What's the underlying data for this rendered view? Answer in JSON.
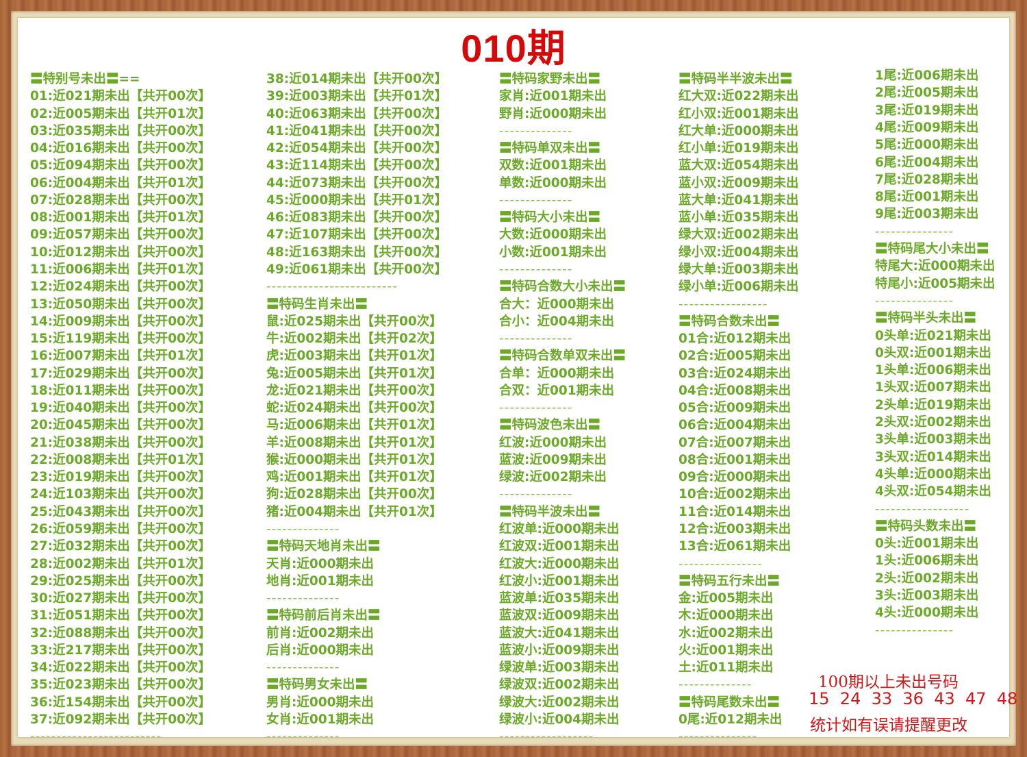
{
  "title": "010期",
  "colors": {
    "text": "#6aaa26",
    "title": "#d40a0a",
    "frame": "#a8643a"
  },
  "columns": [
    [
      "〓特别号未出〓==",
      "01:近021期未出【共开00次】",
      "02:近005期未出【共开01次】",
      "03:近035期未出【共开00次】",
      "04:近016期未出【共开00次】",
      "05:近094期未出【共开00次】",
      "06:近004期未出【共开01次】",
      "07:近028期未出【共开00次】",
      "08:近001期未出【共开01次】",
      "09:近057期未出【共开00次】",
      "10:近012期未出【共开00次】",
      "11:近006期未出【共开01次】",
      "12:近024期未出【共开00次】",
      "13:近050期未出【共开00次】",
      "14:近009期未出【共开00次】",
      "15:近119期未出【共开00次】",
      "16:近007期未出【共开01次】",
      "17:近029期未出【共开00次】",
      "18:近011期未出【共开00次】",
      "19:近040期未出【共开00次】",
      "20:近045期未出【共开00次】",
      "21:近038期未出【共开00次】",
      "22:近008期未出【共开01次】",
      "23:近019期未出【共开00次】",
      "24:近103期未出【共开00次】",
      "25:近043期未出【共开00次】",
      "26:近059期未出【共开00次】",
      "27:近032期未出【共开00次】",
      "28:近002期未出【共开01次】",
      "29:近025期未出【共开00次】",
      "30:近027期未出【共开00次】",
      "31:近051期未出【共开00次】",
      "32:近088期未出【共开00次】",
      "33:近217期未出【共开00次】",
      "34:近022期未出【共开00次】",
      "35:近023期未出【共开00次】",
      "36:近154期未出【共开00次】",
      "37:近092期未出【共开00次】",
      "-------------------------"
    ],
    [
      "38:近014期未出【共开00次】",
      "39:近003期未出【共开01次】",
      "40:近063期未出【共开00次】",
      "41:近041期未出【共开00次】",
      "42:近054期未出【共开00次】",
      "43:近114期未出【共开00次】",
      "44:近073期未出【共开00次】",
      "45:近000期未出【共开01次】",
      "46:近083期未出【共开00次】",
      "47:近107期未出【共开00次】",
      "48:近163期未出【共开00次】",
      "49:近061期未出【共开00次】",
      "-------------------------",
      "〓特码生肖未出〓",
      "鼠:近025期未出【共开00次】",
      "牛:近002期未出【共开02次】",
      "虎:近003期未出【共开01次】",
      "兔:近005期未出【共开01次】",
      "龙:近021期未出【共开00次】",
      "蛇:近024期未出【共开00次】",
      "马:近006期未出【共开01次】",
      "羊:近008期未出【共开01次】",
      "猴:近000期未出【共开01次】",
      "鸡:近001期未出【共开01次】",
      "狗:近028期未出【共开00次】",
      "猪:近004期未出【共开01次】",
      "--------------",
      "〓特码天地肖未出〓",
      "天肖:近000期未出",
      "地肖:近001期未出",
      "--------------",
      "〓特码前后肖未出〓",
      "前肖:近002期未出",
      "后肖:近000期未出",
      "--------------",
      "〓特码男女未出〓",
      "男肖:近000期未出",
      "女肖:近001期未出",
      "--------------"
    ],
    [
      "〓特码家野未出〓",
      "家肖:近001期未出",
      "野肖:近000期未出",
      "--------------",
      "〓特码单双未出〓",
      "双数:近001期未出",
      "单数:近000期未出",
      "--------------",
      "〓特码大小未出〓",
      "大数:近000期未出",
      "小数:近001期未出",
      "--------------",
      "〓特码合数大小未出〓",
      "合大：近000期未出",
      "合小：近004期未出",
      "--------------",
      "〓特码合数单双未出〓",
      "合单：近000期未出",
      "合双：近001期未出",
      "--------------",
      "〓特码波色未出〓",
      "红波:近000期未出",
      "蓝波:近009期未出",
      "绿波:近002期未出",
      "--------------",
      "〓特码半波未出〓",
      "红波单:近000期未出",
      "红波双:近001期未出",
      "红波大:近000期未出",
      "红波小:近001期未出",
      "蓝波单:近035期未出",
      "蓝波双:近009期未出",
      "蓝波大:近041期未出",
      "蓝波小:近009期未出",
      "绿波单:近003期未出",
      "绿波双:近002期未出",
      "绿波大:近002期未出",
      "绿波小:近004期未出",
      "------------------"
    ],
    [
      "〓特码半半波未出〓",
      "红大双:近022期未出",
      "红小双:近001期未出",
      "红大单:近000期未出",
      "红小单:近019期未出",
      "蓝大双:近054期未出",
      "蓝小双:近009期未出",
      "蓝大单:近041期未出",
      "蓝小单:近035期未出",
      "绿大双:近002期未出",
      "绿小双:近004期未出",
      "绿大单:近003期未出",
      "绿小单:近006期未出",
      "-----------------",
      "〓特码合数未出〓",
      "01合:近012期未出",
      "02合:近005期未出",
      "03合:近024期未出",
      "04合:近008期未出",
      "05合:近009期未出",
      "06合:近004期未出",
      "07合:近007期未出",
      "08合:近001期未出",
      "09合:近000期未出",
      "10合:近002期未出",
      "11合:近014期未出",
      "12合:近003期未出",
      "13合:近061期未出",
      "----------------",
      "〓特码五行未出〓",
      "金:近005期未出",
      "木:近000期未出",
      "水:近002期未出",
      "火:近001期未出",
      "土:近011期未出",
      "--------------",
      "〓特码尾数未出〓",
      "0尾:近012期未出",
      "---------------"
    ],
    [
      "1尾:近006期未出",
      "2尾:近005期未出",
      "3尾:近019期未出",
      "4尾:近009期未出",
      "5尾:近000期未出",
      "6尾:近004期未出",
      "7尾:近028期未出",
      "8尾:近001期未出",
      "9尾:近003期未出",
      "---------------",
      "〓特码尾大小未出〓",
      "特尾大:近000期未出",
      "特尾小:近005期未出",
      "---------------",
      "〓特码半头未出〓",
      "0头单:近021期未出",
      "0头双:近001期未出",
      "1头单:近006期未出",
      "1头双:近007期未出",
      "2头单:近019期未出",
      "2头双:近002期未出",
      "3头单:近003期未出",
      "3头双:近014期未出",
      "4头单:近000期未出",
      "4头双:近054期未出",
      "------------------",
      "〓特码头数未出〓",
      "0头:近001期未出",
      "1头:近006期未出",
      "2头:近002期未出",
      "3头:近003期未出",
      "4头:近000期未出",
      "---------------"
    ]
  ],
  "notice": {
    "line1": "100期以上未出号码",
    "line2": "15  24  33  36  43  47  48",
    "line3": "统计如有误请提醒更改"
  }
}
